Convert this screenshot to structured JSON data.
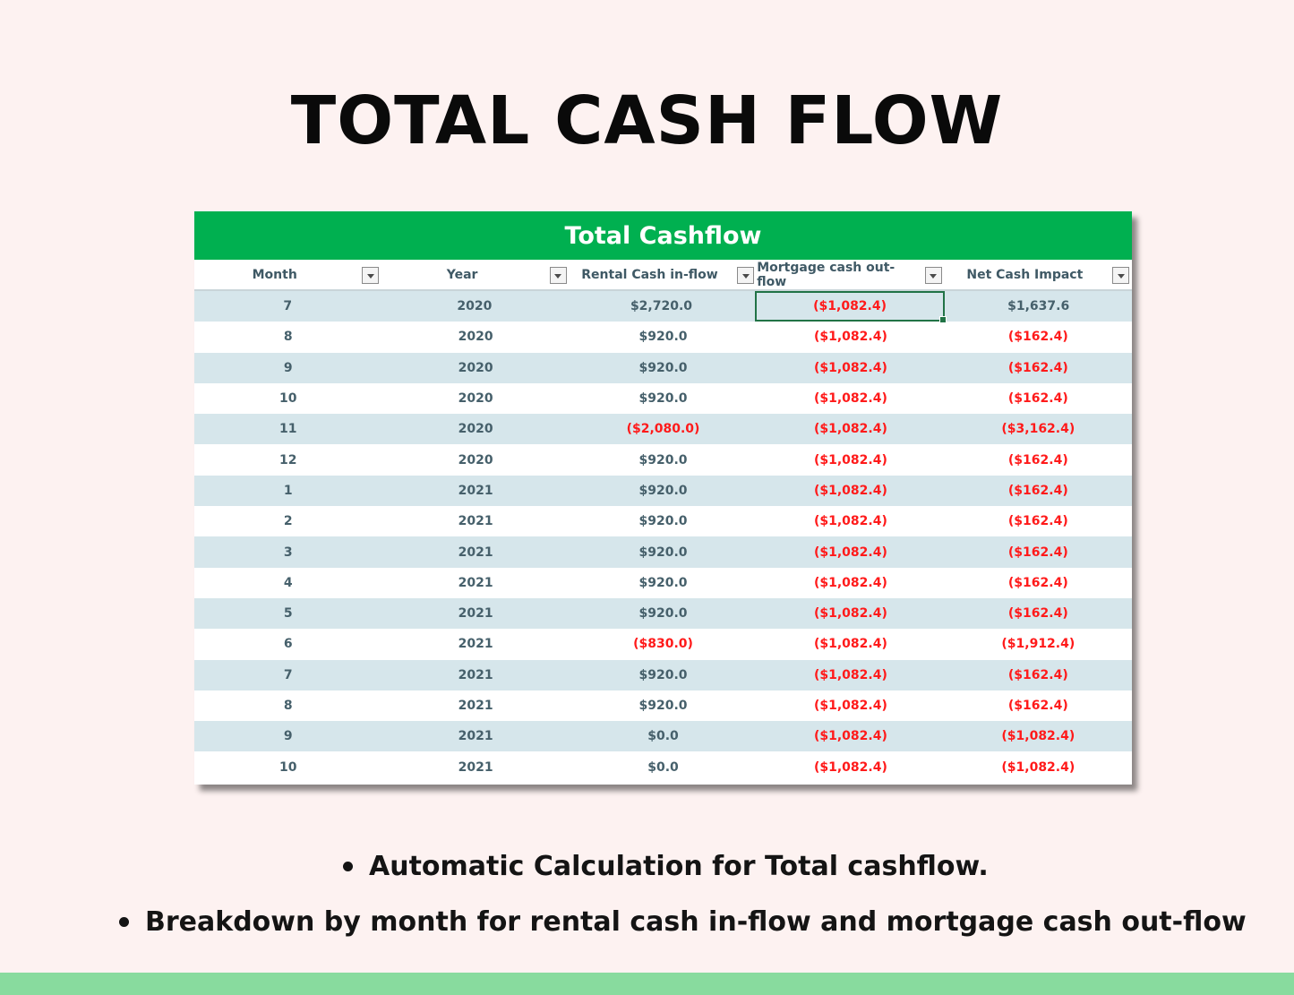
{
  "headline": "TOTAL CASH FLOW",
  "sheet": {
    "title": "Total Cashflow",
    "columns": [
      "Month",
      "Year",
      "Rental Cash in-flow",
      "Mortgage cash out-flow",
      "Net Cash Impact"
    ],
    "rows": [
      [
        "7",
        "2020",
        "$2,720.0",
        "($1,082.4)",
        "$1,637.6"
      ],
      [
        "8",
        "2020",
        "$920.0",
        "($1,082.4)",
        "($162.4)"
      ],
      [
        "9",
        "2020",
        "$920.0",
        "($1,082.4)",
        "($162.4)"
      ],
      [
        "10",
        "2020",
        "$920.0",
        "($1,082.4)",
        "($162.4)"
      ],
      [
        "11",
        "2020",
        "($2,080.0)",
        "($1,082.4)",
        "($3,162.4)"
      ],
      [
        "12",
        "2020",
        "$920.0",
        "($1,082.4)",
        "($162.4)"
      ],
      [
        "1",
        "2021",
        "$920.0",
        "($1,082.4)",
        "($162.4)"
      ],
      [
        "2",
        "2021",
        "$920.0",
        "($1,082.4)",
        "($162.4)"
      ],
      [
        "3",
        "2021",
        "$920.0",
        "($1,082.4)",
        "($162.4)"
      ],
      [
        "4",
        "2021",
        "$920.0",
        "($1,082.4)",
        "($162.4)"
      ],
      [
        "5",
        "2021",
        "$920.0",
        "($1,082.4)",
        "($162.4)"
      ],
      [
        "6",
        "2021",
        "($830.0)",
        "($1,082.4)",
        "($1,912.4)"
      ],
      [
        "7",
        "2021",
        "$920.0",
        "($1,082.4)",
        "($162.4)"
      ],
      [
        "8",
        "2021",
        "$920.0",
        "($1,082.4)",
        "($162.4)"
      ],
      [
        "9",
        "2021",
        "$0.0",
        "($1,082.4)",
        "($1,082.4)"
      ],
      [
        "10",
        "2021",
        "$0.0",
        "($1,082.4)",
        "($1,082.4)"
      ]
    ],
    "selected_cell": {
      "row": 0,
      "col": 3
    }
  },
  "bullets": [
    "Automatic Calculation for Total cashflow.",
    "Breakdown by month for rental cash in-flow and mortgage cash out-flow"
  ],
  "colors": {
    "header_green": "#00b050",
    "band_row": "#d6e6eb",
    "negative": "#ff1a1a",
    "text": "#46606b",
    "footer_bar": "#88db9e",
    "background": "#fdf2f1"
  },
  "icons": {
    "filter": "chevron-down-icon"
  }
}
